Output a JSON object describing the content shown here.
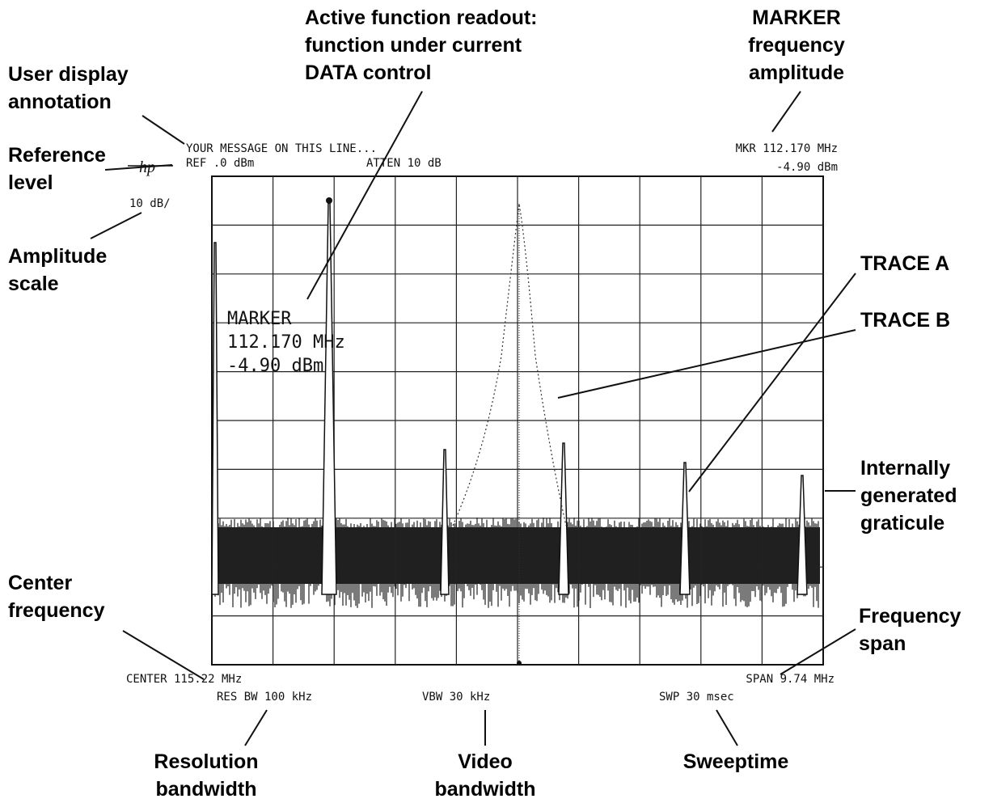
{
  "callouts": {
    "user_display": [
      "User display",
      "annotation"
    ],
    "reference_level": [
      "Reference",
      "level"
    ],
    "amplitude_scale": [
      "Amplitude",
      "scale"
    ],
    "center_frequency": [
      "Center",
      "frequency"
    ],
    "active_function": [
      "Active function readout:",
      "function under current",
      "DATA control"
    ],
    "marker": [
      "MARKER",
      "frequency",
      "amplitude"
    ],
    "trace_a": "TRACE A",
    "trace_b": "TRACE B",
    "graticule": [
      "Internally",
      "generated",
      "graticule"
    ],
    "frequency_span": [
      "Frequency",
      "span"
    ],
    "resolution_bw": [
      "Resolution",
      "bandwidth"
    ],
    "video_bw": [
      "Video",
      "bandwidth"
    ],
    "sweeptime": "Sweeptime"
  },
  "screen": {
    "message": "YOUR MESSAGE ON THIS LINE...",
    "ref": "REF .0 dBm",
    "atten": "ATTEN 10 dB",
    "mkr_freq": "MKR 112.170 MHz",
    "mkr_amp": "-4.90 dBm",
    "scale": "10 dB/",
    "logo": "hp",
    "center": "CENTER 115.22 MHz",
    "span": "SPAN 9.74 MHz",
    "res_bw": "RES BW 100 kHz",
    "vbw": "VBW 30 kHz",
    "swp": "SWP 30 msec"
  },
  "active_readout": {
    "label": "MARKER",
    "freq": "112.170 MHz",
    "amp": "-4.90 dBm"
  }
}
